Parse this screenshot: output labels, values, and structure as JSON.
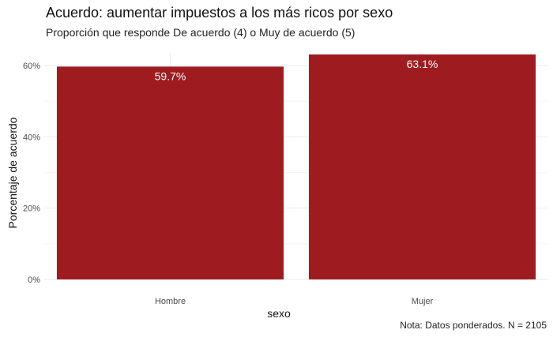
{
  "chart_data": {
    "type": "bar",
    "title": "Acuerdo: aumentar impuestos a los más ricos por sexo",
    "subtitle": "Proporción que responde De acuerdo (4) o Muy de acuerdo (5)",
    "xlabel": "sexo",
    "ylabel": "Porcentaje de acuerdo",
    "caption": "Nota: Datos ponderados. N = 2105",
    "categories": [
      "Hombre",
      "Mujer"
    ],
    "values": [
      59.7,
      63.1
    ],
    "data_labels": [
      "59.7%",
      "63.1%"
    ],
    "ylim": [
      0,
      63.1
    ],
    "yticks": [
      0,
      20,
      40,
      60
    ],
    "ytick_labels": [
      "0%",
      "20%",
      "40%",
      "60%"
    ],
    "bar_color": "#9e1c20",
    "label_color": "#ffffff",
    "grid": true,
    "legend": "none"
  }
}
